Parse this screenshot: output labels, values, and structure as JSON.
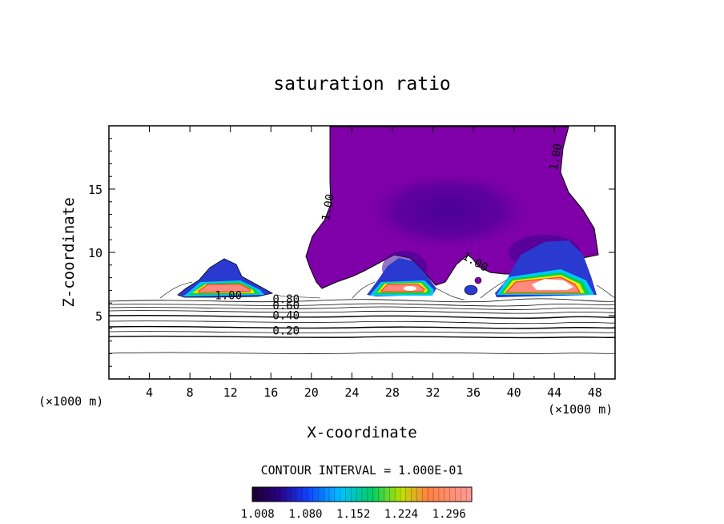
{
  "chart_data": {
    "type": "contour",
    "title": "saturation ratio",
    "xlabel": "X-coordinate",
    "ylabel": "Z-coordinate",
    "x_unit_left": "(×1000 m)",
    "x_unit_right": "(×1000 m)",
    "xlim": [
      0,
      50
    ],
    "ylim": [
      0,
      20
    ],
    "x_ticks": [
      "4",
      "8",
      "12",
      "16",
      "20",
      "24",
      "28",
      "32",
      "36",
      "40",
      "44",
      "48"
    ],
    "y_ticks": [
      "5",
      "10",
      "15"
    ],
    "contour_interval_label": "CONTOUR INTERVAL = 1.000E-01",
    "colorbar_labels": [
      "1.008",
      "1.080",
      "1.152",
      "1.224",
      "1.296"
    ],
    "colorbar_range": [
      1.0,
      1.33
    ],
    "contour_labels": [
      {
        "text": "1.00",
        "x": 22,
        "y": 13.5
      },
      {
        "text": "1.00",
        "x": 11.8,
        "y": 6.3
      },
      {
        "text": "0.80",
        "x": 17.5,
        "y": 6.0
      },
      {
        "text": "0.60",
        "x": 17.5,
        "y": 5.5
      },
      {
        "text": "0.40",
        "x": 17.5,
        "y": 4.7
      },
      {
        "text": "0.20",
        "x": 17.5,
        "y": 3.5
      },
      {
        "text": "1.00",
        "x": 36,
        "y": 9.0
      },
      {
        "text": "1.00",
        "x": 44.5,
        "y": 17.5
      }
    ],
    "colors": {
      "purple": "#7f00a8",
      "dark_violet": "#4a0090",
      "blue": "#1a3cff",
      "cyan": "#00c8ff",
      "green": "#00d24a",
      "yellow": "#e8e800",
      "orange": "#ff7020",
      "salmon": "#ff8a80"
    }
  }
}
